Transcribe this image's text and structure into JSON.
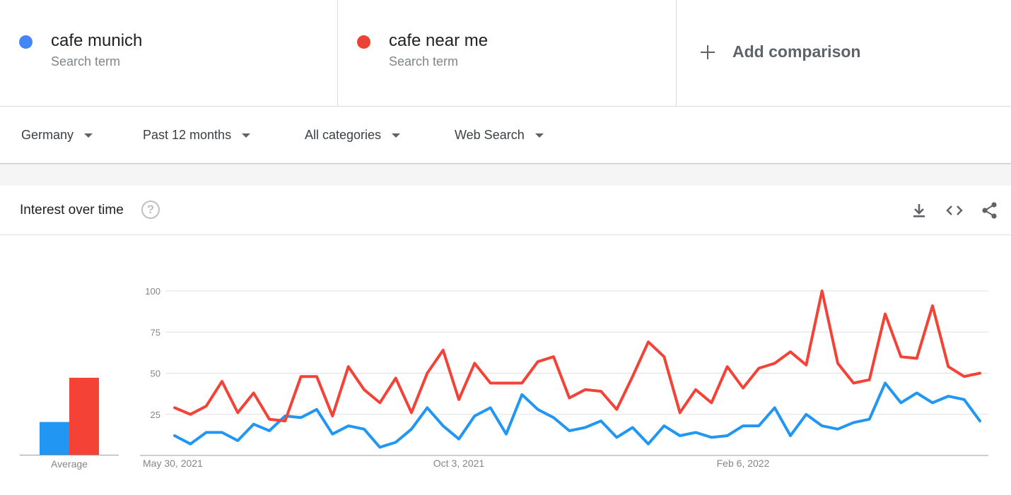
{
  "terms": [
    {
      "name": "cafe munich",
      "sub": "Search term",
      "color": "#4285f4"
    },
    {
      "name": "cafe near me",
      "sub": "Search term",
      "color": "#ea4335"
    }
  ],
  "add_comparison": "Add comparison",
  "filters": {
    "region": "Germany",
    "period": "Past 12 months",
    "category": "All categories",
    "search_type": "Web Search"
  },
  "card": {
    "title": "Interest over time",
    "help": "?"
  },
  "icons": [
    "download-icon",
    "embed-code-icon",
    "share-icon",
    "help-icon",
    "plus-icon"
  ],
  "chart_data": {
    "type": "line",
    "ylim": [
      0,
      100
    ],
    "yticks": [
      25,
      50,
      75,
      100
    ],
    "xtick_labels": [
      "May 30, 2021",
      "Oct 3, 2021",
      "Feb 6, 2022"
    ],
    "xtick_index": [
      0,
      18,
      36
    ],
    "grid": true,
    "series": [
      {
        "name": "cafe munich",
        "color": "#2196f3",
        "values": [
          12,
          7,
          14,
          14,
          9,
          19,
          15,
          24,
          23,
          28,
          13,
          18,
          16,
          5,
          8,
          16,
          29,
          18,
          10,
          24,
          29,
          13,
          37,
          28,
          23,
          15,
          17,
          21,
          11,
          17,
          7,
          18,
          12,
          14,
          11,
          12,
          18,
          18,
          29,
          12,
          25,
          18,
          16,
          20,
          22,
          44,
          32,
          38,
          32,
          36,
          34,
          21
        ]
      },
      {
        "name": "cafe near me",
        "color": "#f44336",
        "values": [
          29,
          25,
          30,
          45,
          26,
          38,
          22,
          21,
          48,
          48,
          24,
          54,
          40,
          32,
          47,
          26,
          50,
          64,
          34,
          56,
          44,
          44,
          44,
          57,
          60,
          35,
          40,
          39,
          28,
          48,
          69,
          60,
          26,
          40,
          32,
          54,
          41,
          53,
          56,
          63,
          55,
          100,
          56,
          44,
          46,
          86,
          60,
          59,
          91,
          54,
          48,
          50
        ]
      }
    ],
    "average": {
      "label": "Average",
      "values": [
        20,
        47
      ]
    }
  }
}
